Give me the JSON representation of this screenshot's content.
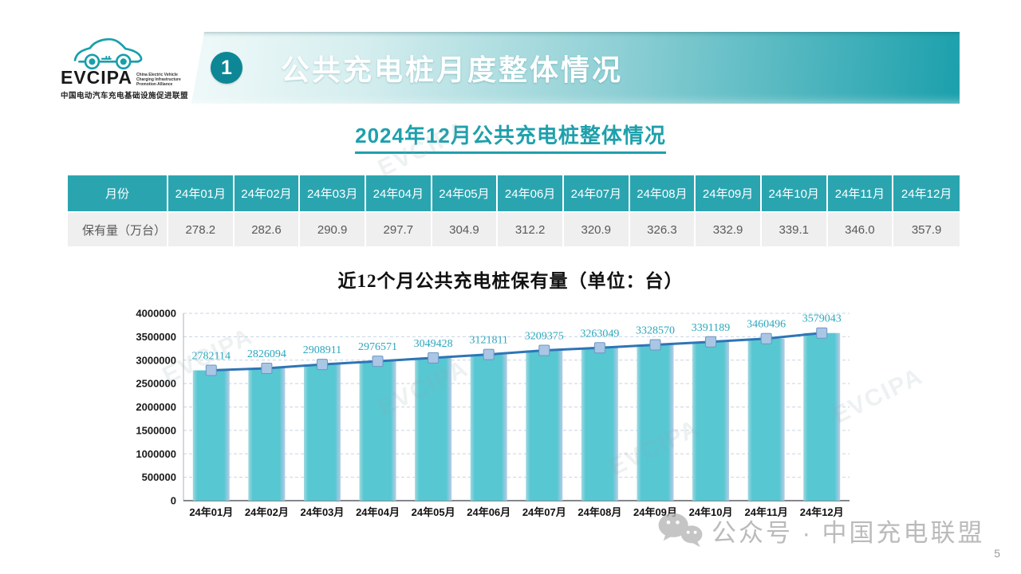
{
  "logo": {
    "acronym": "EVCIPA",
    "en_lines": [
      "China Electric Vehicle",
      "Charging Infrastructure",
      "Promotion Alliance"
    ],
    "cn": "中国电动汽车充电基础设施促进联盟"
  },
  "header": {
    "number": "1",
    "title": "公共充电桩月度整体情况"
  },
  "section_title": "2024年12月公共充电桩整体情况",
  "table": {
    "header_label": "月份",
    "row_label": "保有量（万台）",
    "months": [
      "24年01月",
      "24年02月",
      "24年03月",
      "24年04月",
      "24年05月",
      "24年06月",
      "24年07月",
      "24年08月",
      "24年09月",
      "24年10月",
      "24年11月",
      "24年12月"
    ],
    "values": [
      "278.2",
      "282.6",
      "290.9",
      "297.7",
      "304.9",
      "312.2",
      "320.9",
      "326.3",
      "332.9",
      "339.1",
      "346.0",
      "357.9"
    ]
  },
  "chart_data": {
    "type": "bar",
    "overlay": "line",
    "title": "近12个月公共充电桩保有量（单位：台）",
    "categories": [
      "24年01月",
      "24年02月",
      "24年03月",
      "24年04月",
      "24年05月",
      "24年06月",
      "24年07月",
      "24年08月",
      "24年09月",
      "24年10月",
      "24年11月",
      "24年12月"
    ],
    "values": [
      2782114,
      2826094,
      2908911,
      2976571,
      3049428,
      3121811,
      3209375,
      3263049,
      3328570,
      3391189,
      3460496,
      3579043
    ],
    "ylim": [
      0,
      4000000
    ],
    "ytick_step": 500000,
    "grid": true,
    "legend": "none",
    "bar_color": "#57c7d2",
    "bar_edge_color": "#b9cbe6",
    "line_color": "#2e75b6",
    "marker_color": "#a9c6e5",
    "marker_edge_color": "#6e96c2",
    "label_color": "#2aa7bd",
    "gridline_color": "#c8d4e4"
  },
  "footer": {
    "wechat_label": "公众号 · 中国充电联盟",
    "page_number": "5"
  },
  "watermark": "EVCIPA"
}
